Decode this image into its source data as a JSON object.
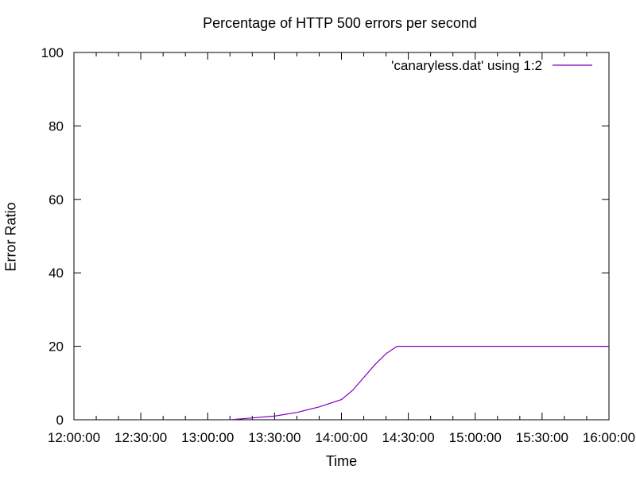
{
  "chart_data": {
    "type": "line",
    "title": "Percentage of HTTP 500 errors per second",
    "xlabel": "Time",
    "ylabel": "Error Ratio",
    "x_range": [
      "12:00:00",
      "16:00:00"
    ],
    "ylim": [
      0,
      100
    ],
    "x_ticks": [
      "12:00:00",
      "12:30:00",
      "13:00:00",
      "13:30:00",
      "14:00:00",
      "14:30:00",
      "15:00:00",
      "15:30:00",
      "16:00:00"
    ],
    "y_ticks": [
      0,
      20,
      40,
      60,
      80,
      100
    ],
    "grid": false,
    "legend_position": "top-right",
    "series": [
      {
        "name": "'canaryless.dat' using 1:2",
        "color": "#8000c0",
        "x": [
          "13:10:00",
          "13:20:00",
          "13:30:00",
          "13:40:00",
          "13:50:00",
          "14:00:00",
          "14:05:00",
          "14:10:00",
          "14:15:00",
          "14:20:00",
          "14:25:00",
          "14:30:00",
          "14:45:00",
          "15:00:00",
          "15:30:00",
          "16:00:00"
        ],
        "y": [
          0,
          0.5,
          1,
          2,
          3.5,
          5.5,
          8,
          11.5,
          15,
          18,
          20,
          20,
          20,
          20,
          20,
          20
        ]
      }
    ]
  }
}
